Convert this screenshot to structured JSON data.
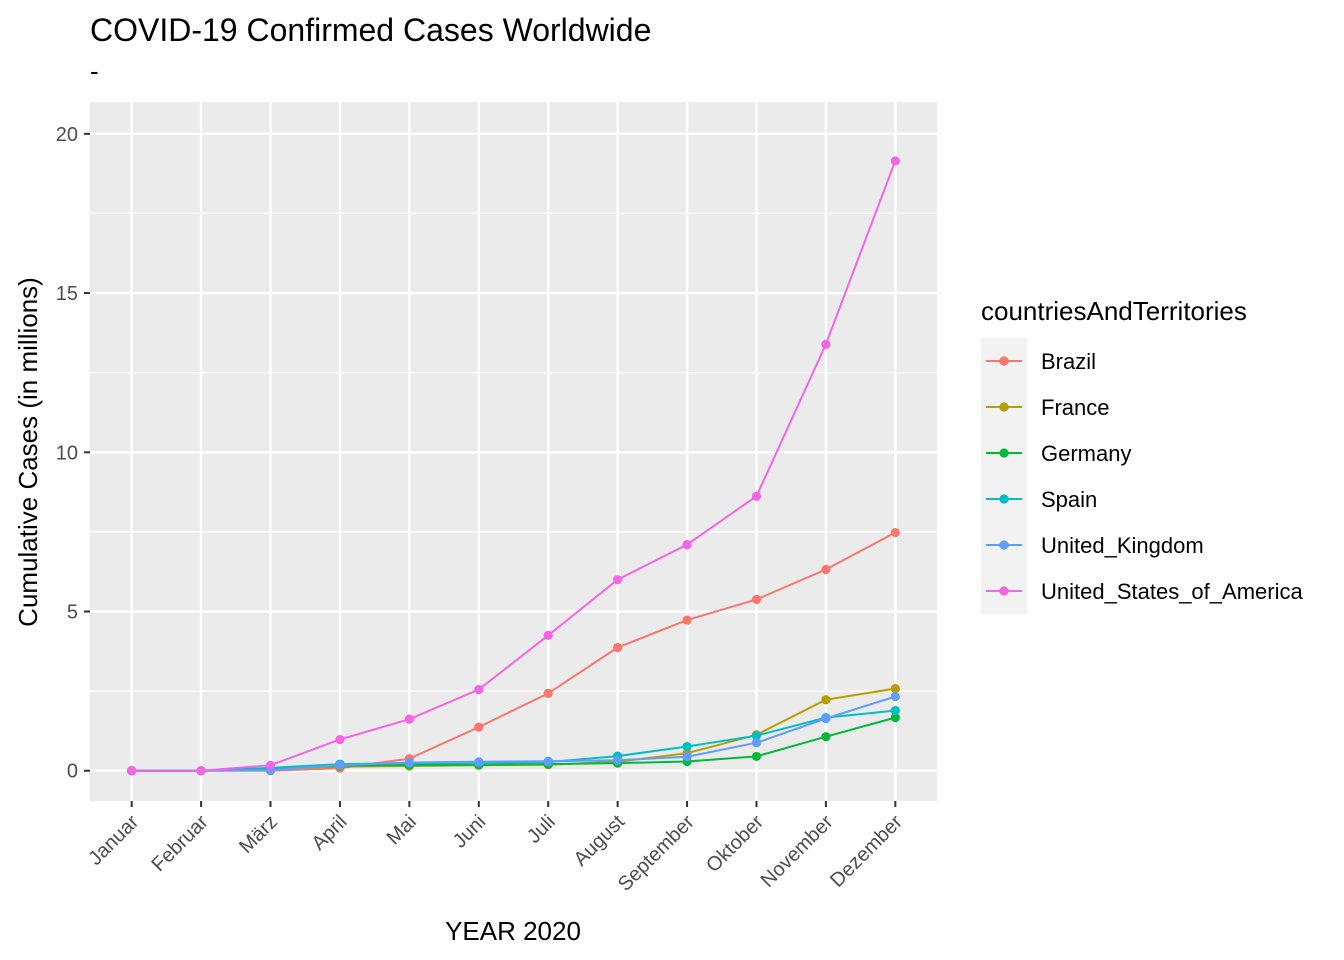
{
  "chart_data": {
    "type": "line",
    "title": "COVID-19 Confirmed Cases Worldwide",
    "subtitle": "-",
    "xlabel": "YEAR 2020",
    "ylabel": "Cumulative Cases (in millions)",
    "categories": [
      "Januar",
      "Februar",
      "März",
      "April",
      "Mai",
      "Juni",
      "Juli",
      "August",
      "September",
      "Oktober",
      "November",
      "Dezember"
    ],
    "ylim": [
      -0.95,
      21
    ],
    "yticks": [
      0,
      5,
      10,
      15,
      20
    ],
    "grid": true,
    "legend": {
      "title": "countriesAndTerritories",
      "position": "right"
    },
    "series": [
      {
        "name": "Brazil",
        "color": "#F8766D",
        "values": [
          0,
          0,
          0.0,
          0.08,
          0.38,
          1.37,
          2.43,
          3.87,
          4.73,
          5.38,
          6.32,
          7.48
        ]
      },
      {
        "name": "France",
        "color": "#B79F00",
        "values": [
          0,
          0,
          0.05,
          0.13,
          0.15,
          0.17,
          0.19,
          0.28,
          0.55,
          1.13,
          2.23,
          2.58
        ]
      },
      {
        "name": "Germany",
        "color": "#00BA38",
        "values": [
          0,
          0,
          0.06,
          0.16,
          0.18,
          0.19,
          0.21,
          0.24,
          0.29,
          0.45,
          1.07,
          1.67
        ]
      },
      {
        "name": "Spain",
        "color": "#00BFC4",
        "values": [
          0,
          0,
          0.09,
          0.21,
          0.24,
          0.25,
          0.27,
          0.46,
          0.76,
          1.1,
          1.67,
          1.89
        ]
      },
      {
        "name": "United_Kingdom",
        "color": "#619CFF",
        "values": [
          0,
          0,
          0.02,
          0.17,
          0.26,
          0.28,
          0.3,
          0.33,
          0.44,
          0.88,
          1.64,
          2.33
        ]
      },
      {
        "name": "United_States_of_America",
        "color": "#F564E3",
        "values": [
          0,
          0,
          0.17,
          0.98,
          1.62,
          2.55,
          4.25,
          6.0,
          7.1,
          8.62,
          13.39,
          19.15
        ]
      }
    ]
  }
}
